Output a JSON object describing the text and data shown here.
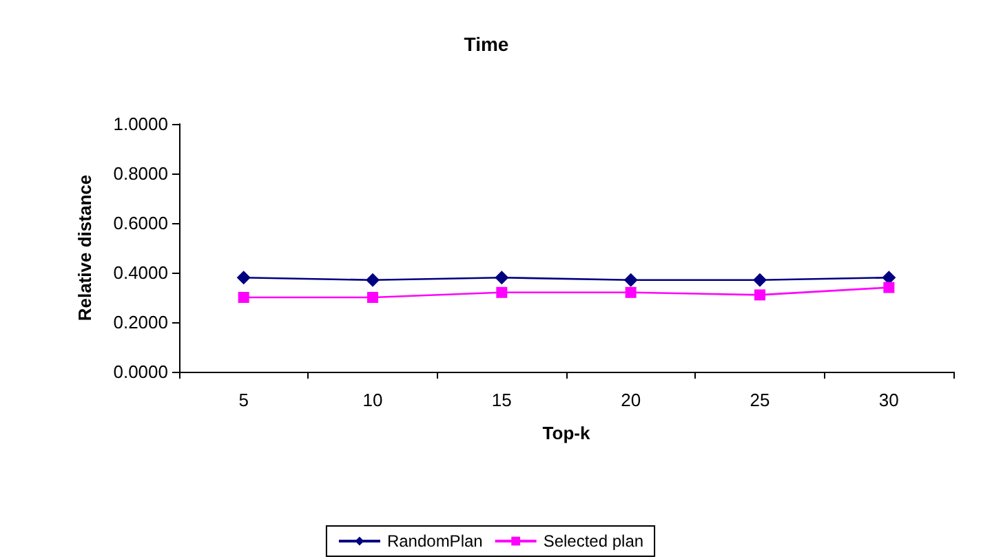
{
  "chart_data": {
    "type": "line",
    "title": "Time",
    "xlabel": "Top-k",
    "ylabel": "Relative distance",
    "categories": [
      "5",
      "10",
      "15",
      "20",
      "25",
      "30"
    ],
    "series": [
      {
        "name": "RandomPlan",
        "color": "#000080",
        "marker": "diamond",
        "values": [
          0.38,
          0.37,
          0.38,
          0.37,
          0.37,
          0.38
        ]
      },
      {
        "name": "Selected plan",
        "color": "#ff00ff",
        "marker": "square",
        "values": [
          0.3,
          0.3,
          0.32,
          0.32,
          0.31,
          0.34
        ]
      }
    ],
    "ylim": [
      0,
      1
    ],
    "yticks": [
      {
        "value": 0,
        "label": "0.0000"
      },
      {
        "value": 0.2,
        "label": "0.2000"
      },
      {
        "value": 0.4,
        "label": "0.4000"
      },
      {
        "value": 0.6,
        "label": "0.6000"
      },
      {
        "value": 0.8,
        "label": "0.8000"
      },
      {
        "value": 1,
        "label": "1.0000"
      }
    ],
    "grid": false,
    "legend": "bottom",
    "line_style": "solid"
  }
}
